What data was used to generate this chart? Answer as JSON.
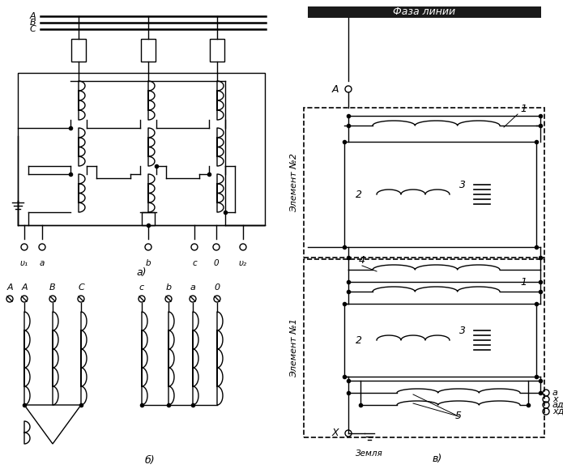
{
  "bg_color": "#ffffff",
  "line_color": "#000000",
  "fig_width": 6.95,
  "fig_height": 5.84,
  "label_faza": "Фаза линии",
  "label_element1": "Элемент №1",
  "label_element2": "Элемент №2"
}
